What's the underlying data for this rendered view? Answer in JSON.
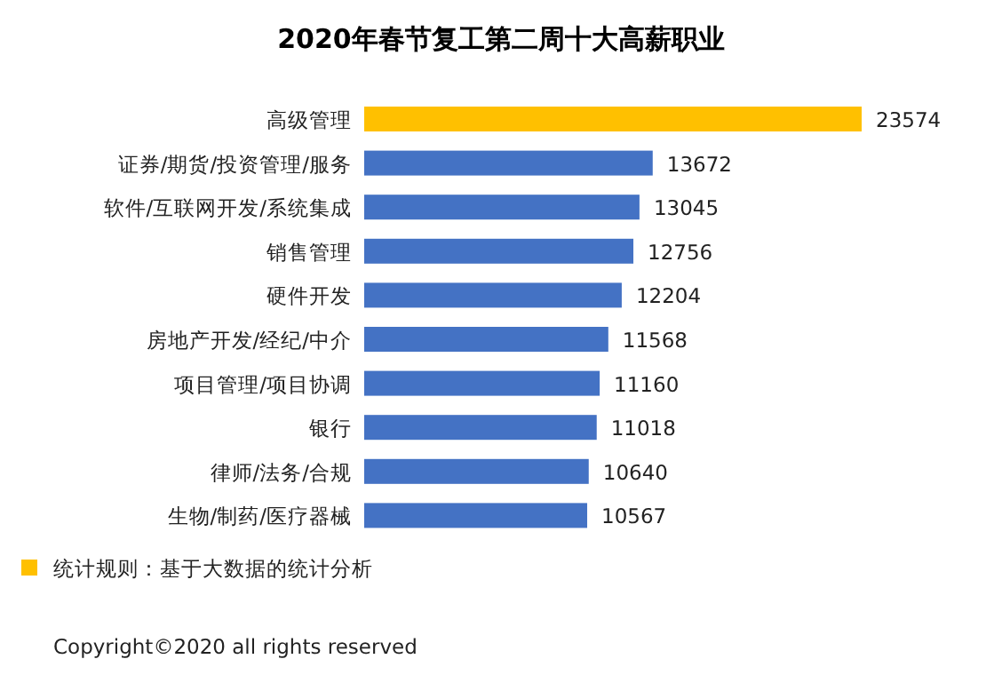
{
  "chart_data": {
    "type": "bar",
    "orientation": "horizontal",
    "title": "2020年春节复工第二周十大高薪职业",
    "categories": [
      "高级管理",
      "证券/期货/投资管理/服务",
      "软件/互联网开发/系统集成",
      "销售管理",
      "硬件开发",
      "房地产开发/经纪/中介",
      "项目管理/项目协调",
      "银行",
      "律师/法务/合规",
      "生物/制药/医疗器械"
    ],
    "values": [
      23574,
      13672,
      13045,
      12756,
      12204,
      11568,
      11160,
      11018,
      10640,
      10567
    ],
    "colors": [
      "#ffc000",
      "#4472c4",
      "#4472c4",
      "#4472c4",
      "#4472c4",
      "#4472c4",
      "#4472c4",
      "#4472c4",
      "#4472c4",
      "#4472c4"
    ],
    "data_labels": true,
    "annotations": [
      "统计规则：基于大数据的统计分析",
      "Copyright©2020 all rights reserved"
    ]
  }
}
